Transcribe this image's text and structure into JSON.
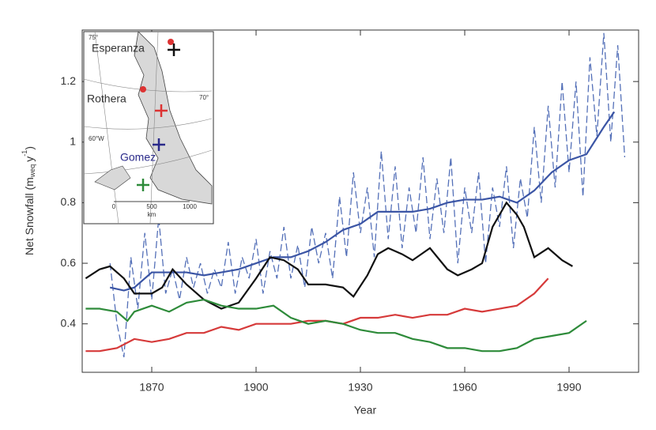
{
  "chart_data": {
    "type": "line",
    "x_label": "Year",
    "y_label": {
      "main": "Net Snowfall (m",
      "sub": "weq",
      "mid": "y",
      "sup": "-1",
      "end": ")"
    },
    "xlim": [
      1850,
      2010
    ],
    "ylim": [
      0.24,
      1.37
    ],
    "xticks": [
      1870,
      1900,
      1930,
      1960,
      1990
    ],
    "yticks": [
      0.4,
      0.6,
      0.8,
      1.0,
      1.2
    ],
    "series": [
      {
        "color": "#5470b8",
        "dash": true,
        "x": [
          1858,
          1860,
          1862,
          1864,
          1866,
          1868,
          1870,
          1872,
          1874,
          1876,
          1878,
          1880,
          1882,
          1884,
          1886,
          1888,
          1890,
          1892,
          1894,
          1896,
          1898,
          1900,
          1902,
          1904,
          1906,
          1908,
          1910,
          1912,
          1914,
          1916,
          1918,
          1920,
          1922,
          1924,
          1926,
          1928,
          1930,
          1932,
          1934,
          1936,
          1938,
          1940,
          1942,
          1944,
          1946,
          1948,
          1950,
          1952,
          1954,
          1956,
          1958,
          1960,
          1962,
          1964,
          1966,
          1968,
          1970,
          1972,
          1974,
          1976,
          1978,
          1980,
          1982,
          1984,
          1986,
          1988,
          1990,
          1992,
          1994,
          1996,
          1998,
          2000,
          2002,
          2004,
          2006
        ],
        "values": [
          0.6,
          0.4,
          0.29,
          0.62,
          0.45,
          0.7,
          0.48,
          0.75,
          0.5,
          0.58,
          0.48,
          0.62,
          0.52,
          0.6,
          0.5,
          0.58,
          0.52,
          0.67,
          0.5,
          0.62,
          0.55,
          0.68,
          0.5,
          0.64,
          0.55,
          0.72,
          0.55,
          0.66,
          0.52,
          0.72,
          0.6,
          0.7,
          0.55,
          0.82,
          0.62,
          0.9,
          0.7,
          0.85,
          0.62,
          0.97,
          0.68,
          0.92,
          0.65,
          0.85,
          0.7,
          0.95,
          0.68,
          0.88,
          0.7,
          0.95,
          0.6,
          0.85,
          0.7,
          0.9,
          0.6,
          0.85,
          0.72,
          0.92,
          0.65,
          0.88,
          0.75,
          1.05,
          0.8,
          1.12,
          0.85,
          1.2,
          0.9,
          1.2,
          0.82,
          1.28,
          1.02,
          1.36,
          1.0,
          1.32,
          0.95
        ]
      },
      {
        "color": "#3b55a5",
        "x": [
          1858,
          1862,
          1865,
          1870,
          1875,
          1880,
          1885,
          1890,
          1895,
          1900,
          1905,
          1910,
          1915,
          1920,
          1925,
          1930,
          1935,
          1940,
          1945,
          1950,
          1955,
          1960,
          1965,
          1970,
          1975,
          1980,
          1985,
          1990,
          1995,
          2000,
          2003
        ],
        "values": [
          0.52,
          0.51,
          0.52,
          0.57,
          0.57,
          0.57,
          0.56,
          0.57,
          0.58,
          0.6,
          0.62,
          0.62,
          0.64,
          0.67,
          0.71,
          0.73,
          0.77,
          0.77,
          0.77,
          0.78,
          0.8,
          0.81,
          0.81,
          0.82,
          0.8,
          0.84,
          0.9,
          0.94,
          0.96,
          1.05,
          1.1
        ]
      },
      {
        "color": "#111111",
        "x": [
          1851,
          1855,
          1858,
          1862,
          1865,
          1870,
          1873,
          1876,
          1880,
          1885,
          1890,
          1895,
          1900,
          1904,
          1908,
          1912,
          1915,
          1920,
          1925,
          1928,
          1932,
          1935,
          1938,
          1942,
          1945,
          1950,
          1955,
          1958,
          1962,
          1965,
          1968,
          1972,
          1975,
          1977,
          1980,
          1984,
          1988,
          1991
        ],
        "values": [
          0.55,
          0.58,
          0.59,
          0.55,
          0.5,
          0.5,
          0.52,
          0.58,
          0.53,
          0.48,
          0.45,
          0.47,
          0.55,
          0.62,
          0.61,
          0.58,
          0.53,
          0.53,
          0.52,
          0.49,
          0.56,
          0.63,
          0.65,
          0.63,
          0.61,
          0.65,
          0.58,
          0.56,
          0.58,
          0.6,
          0.72,
          0.8,
          0.76,
          0.72,
          0.62,
          0.65,
          0.61,
          0.59
        ]
      },
      {
        "color": "#d63a3a",
        "x": [
          1851,
          1855,
          1860,
          1865,
          1870,
          1875,
          1880,
          1885,
          1890,
          1895,
          1900,
          1905,
          1910,
          1915,
          1920,
          1925,
          1930,
          1935,
          1940,
          1945,
          1950,
          1955,
          1960,
          1965,
          1970,
          1975,
          1980,
          1984
        ],
        "values": [
          0.31,
          0.31,
          0.32,
          0.35,
          0.34,
          0.35,
          0.37,
          0.37,
          0.39,
          0.38,
          0.4,
          0.4,
          0.4,
          0.41,
          0.41,
          0.4,
          0.42,
          0.42,
          0.43,
          0.42,
          0.43,
          0.43,
          0.45,
          0.44,
          0.45,
          0.46,
          0.5,
          0.55
        ]
      },
      {
        "color": "#2e8b3a",
        "x": [
          1851,
          1855,
          1860,
          1863,
          1865,
          1870,
          1875,
          1880,
          1885,
          1890,
          1895,
          1900,
          1905,
          1910,
          1915,
          1920,
          1925,
          1930,
          1935,
          1940,
          1945,
          1950,
          1955,
          1960,
          1965,
          1970,
          1975,
          1980,
          1985,
          1990,
          1995
        ],
        "values": [
          0.45,
          0.45,
          0.44,
          0.41,
          0.44,
          0.46,
          0.44,
          0.47,
          0.48,
          0.46,
          0.45,
          0.45,
          0.46,
          0.42,
          0.4,
          0.41,
          0.4,
          0.38,
          0.37,
          0.37,
          0.35,
          0.34,
          0.32,
          0.32,
          0.31,
          0.31,
          0.32,
          0.35,
          0.36,
          0.37,
          0.41
        ]
      }
    ]
  },
  "inset": {
    "sites": [
      "Esperanza",
      "Rothera",
      "Gomez"
    ],
    "scale": [
      "0",
      "500",
      "1000"
    ],
    "unit": "km",
    "graticule": [
      "70°",
      "60°W",
      "75°"
    ]
  }
}
